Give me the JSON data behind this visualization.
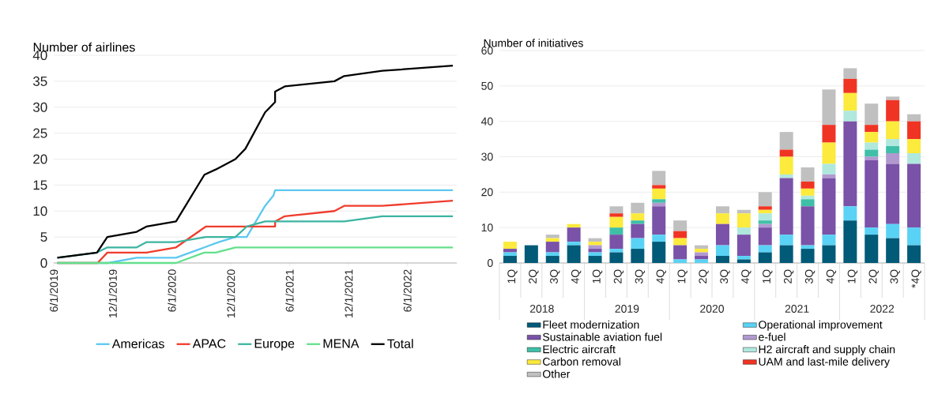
{
  "chart_data": [
    {
      "type": "line",
      "ylabel": "Number of airlines",
      "xlim": [
        "2019-06-01",
        "2022-11-01"
      ],
      "ylim": [
        0,
        40
      ],
      "yticks": [
        0,
        5,
        10,
        15,
        20,
        25,
        30,
        35,
        40
      ],
      "xticks": [
        {
          "value": "2019-06-01",
          "label": "6/1/2019"
        },
        {
          "value": "2019-12-01",
          "label": "12/1/2019"
        },
        {
          "value": "2020-06-01",
          "label": "6/1/2020"
        },
        {
          "value": "2020-12-01",
          "label": "12/1/2020"
        },
        {
          "value": "2021-06-01",
          "label": "6/1/2021"
        },
        {
          "value": "2021-12-01",
          "label": "12/1/2021"
        },
        {
          "value": "2022-06-01",
          "label": "6/1/2022"
        }
      ],
      "grid": "y",
      "legend": "bottom",
      "series": [
        {
          "name": "Americas",
          "color": "#5cc8f0",
          "x": [
            "2019-06-12",
            "2019-11-17",
            "2020-02-13",
            "2020-06-14",
            "2020-09-10",
            "2020-10-24",
            "2020-12-15",
            "2021-01-19",
            "2021-03-17",
            "2021-04-12",
            "2021-04-17",
            "2022-10-20"
          ],
          "values": [
            0,
            0,
            1,
            1,
            3,
            4,
            5,
            5,
            11,
            13,
            14,
            14
          ]
        },
        {
          "name": "APAC",
          "color": "#f03c2c",
          "x": [
            "2019-06-12",
            "2019-10-15",
            "2019-11-14",
            "2020-03-14",
            "2020-06-14",
            "2020-09-14",
            "2021-04-17",
            "2021-04-17",
            "2021-05-17",
            "2021-10-18",
            "2021-11-17",
            "2022-03-15",
            "2022-10-20"
          ],
          "values": [
            0,
            0,
            2,
            2,
            3,
            7,
            7,
            8,
            9,
            10,
            11,
            11,
            12
          ]
        },
        {
          "name": "Europe",
          "color": "#3cb4a0",
          "x": [
            "2019-06-12",
            "2019-10-13",
            "2019-11-14",
            "2020-02-13",
            "2020-03-14",
            "2020-06-14",
            "2020-09-14",
            "2020-12-15",
            "2021-01-19",
            "2021-03-17",
            "2021-11-17",
            "2022-03-15",
            "2022-10-20"
          ],
          "values": [
            1,
            2,
            3,
            3,
            4,
            4,
            5,
            5,
            7,
            8,
            8,
            9,
            9
          ]
        },
        {
          "name": "MENA",
          "color": "#64e08c",
          "x": [
            "2019-06-12",
            "2020-06-14",
            "2020-09-10",
            "2020-10-15",
            "2020-12-15",
            "2022-10-20"
          ],
          "values": [
            0,
            0,
            2,
            2,
            3,
            3
          ]
        },
        {
          "name": "Total",
          "color": "#000000",
          "x": [
            "2019-06-12",
            "2019-10-13",
            "2019-11-14",
            "2020-02-13",
            "2020-03-14",
            "2020-06-14",
            "2020-09-10",
            "2020-10-15",
            "2020-12-15",
            "2021-01-15",
            "2021-03-17",
            "2021-04-17",
            "2021-04-17",
            "2021-05-17",
            "2021-10-18",
            "2021-11-17",
            "2022-03-15",
            "2022-10-20"
          ],
          "values": [
            1,
            2,
            5,
            6,
            7,
            8,
            17,
            18,
            20,
            22,
            29,
            31,
            33,
            34,
            35,
            36,
            37,
            38
          ]
        }
      ]
    },
    {
      "type": "bar",
      "stacked": true,
      "ylabel": "Number of initiatives",
      "ylim": [
        0,
        60
      ],
      "yticks": [
        0,
        10,
        20,
        30,
        40,
        50,
        60
      ],
      "grid": "y",
      "legend": "bottom",
      "categories": [
        "1Q",
        "2Q",
        "3Q",
        "4Q",
        "1Q",
        "2Q",
        "3Q",
        "4Q",
        "1Q",
        "2Q",
        "3Q",
        "4Q",
        "1Q",
        "2Q",
        "3Q",
        "4Q",
        "1Q",
        "2Q",
        "3Q",
        "*4Q"
      ],
      "annotations": [
        "2018",
        "2019",
        "2020",
        "2021",
        "2022"
      ],
      "series": [
        {
          "name": "Fleet modernization",
          "color": "#005a78",
          "values": [
            2,
            5,
            2,
            5,
            2,
            3,
            4,
            6,
            0,
            0,
            2,
            1,
            3,
            5,
            4,
            5,
            12,
            8,
            7,
            5
          ]
        },
        {
          "name": "Operational improvement",
          "color": "#5ad2f5",
          "values": [
            1,
            0,
            1,
            1,
            1,
            1,
            3,
            2,
            1,
            1,
            3,
            1,
            2,
            3,
            1,
            3,
            4,
            2,
            4,
            5
          ]
        },
        {
          "name": "Sustainable aviation fuel",
          "color": "#7a52a8",
          "values": [
            1,
            0,
            3,
            4,
            1,
            4,
            4,
            8,
            4,
            1,
            6,
            6,
            5,
            16,
            11,
            16,
            24,
            19,
            17,
            18
          ]
        },
        {
          "name": "e-fuel",
          "color": "#b199d0",
          "values": [
            0,
            0,
            0,
            0,
            1,
            0,
            0,
            1,
            0,
            1,
            0,
            0,
            1,
            0,
            0,
            1,
            0,
            1,
            3,
            0
          ]
        },
        {
          "name": "Electric aircraft",
          "color": "#40bfa8",
          "values": [
            0,
            0,
            0,
            0,
            0,
            2,
            1,
            1,
            0,
            0,
            0,
            0,
            1,
            0,
            2,
            0,
            0,
            2,
            2,
            0
          ]
        },
        {
          "name": "H2 aircraft and supply chain",
          "color": "#b0e8de",
          "values": [
            0,
            0,
            0,
            0,
            0,
            0,
            0,
            0,
            0,
            0,
            0,
            2,
            2,
            1,
            1,
            3,
            3,
            2,
            2,
            3
          ]
        },
        {
          "name": "Carbon removal",
          "color": "#fcea3c",
          "values": [
            2,
            0,
            1,
            1,
            1,
            3,
            2,
            3,
            2,
            1,
            3,
            4,
            1,
            5,
            2,
            6,
            5,
            3,
            5,
            4
          ]
        },
        {
          "name": "UAM and last-mile delivery",
          "color": "#f03424",
          "values": [
            0,
            0,
            0,
            0,
            0,
            1,
            0,
            1,
            2,
            0,
            0,
            0,
            1,
            2,
            2,
            5,
            4,
            2,
            6,
            5
          ]
        },
        {
          "name": "Other",
          "color": "#c0c0c0",
          "values": [
            0,
            0,
            1,
            0,
            1,
            2,
            3,
            4,
            3,
            1,
            2,
            1,
            4,
            5,
            4,
            10,
            3,
            6,
            1,
            2
          ]
        }
      ]
    }
  ]
}
